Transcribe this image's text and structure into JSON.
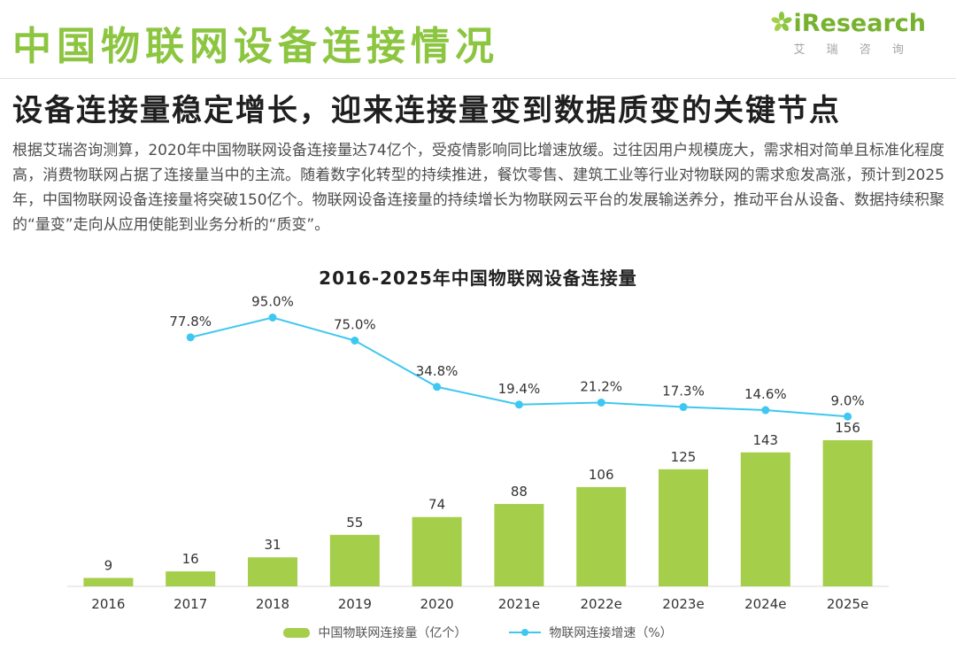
{
  "page": {
    "title": "中国物联网设备连接情况",
    "subtitle": "设备连接量稳定增长，迎来连接量变到数据质变的关键节点",
    "paragraph": "根据艾瑞咨询测算，2020年中国物联网设备连接量达74亿个，受疫情影响同比增速放缓。过往因用户规模庞大，需求相对简单且标准化程度高，消费物联网占据了连接量当中的主流。随着数字化转型的持续推进，餐饮零售、建筑工业等行业对物联网的需求愈发高涨，预计到2025年，中国物联网设备连接量将突破150亿个。物联网设备连接量的持续增长为物联网云平台的发展输送养分，推动平台从设备、数据持续积聚的“量变”走向从应用使能到业务分析的“质变”。"
  },
  "logo": {
    "brand": "iResearch",
    "brand_cn": "艾 瑞 咨 询"
  },
  "colors": {
    "brand_green": "#8CC540",
    "bar_green": "#A5CE4B",
    "line_cyan": "#3EC7F0",
    "label_dark": "#333333",
    "axis_gray": "#d9d9d9"
  },
  "chart_data": {
    "type": "bar",
    "title": "2016-2025年中国物联网设备连接量",
    "categories": [
      "2016",
      "2017",
      "2018",
      "2019",
      "2020",
      "2021e",
      "2022e",
      "2023e",
      "2024e",
      "2025e"
    ],
    "series": [
      {
        "name": "中国物联网连接量（亿个）",
        "type": "bar",
        "values": [
          9,
          16,
          31,
          55,
          74,
          88,
          106,
          125,
          143,
          156
        ],
        "color": "#A5CE4B"
      },
      {
        "name": "物联网连接增速（%）",
        "type": "line",
        "x_start_index": 1,
        "values": [
          77.8,
          95.0,
          75.0,
          34.8,
          19.4,
          21.2,
          17.3,
          14.6,
          9.0
        ],
        "unit": "%",
        "color": "#3EC7F0"
      }
    ],
    "xlabel": "",
    "ylabel": "",
    "ylim_bar": [
      0,
      165
    ],
    "ylim_line_pct": [
      0,
      120
    ],
    "grid": false,
    "legend_position": "bottom"
  }
}
